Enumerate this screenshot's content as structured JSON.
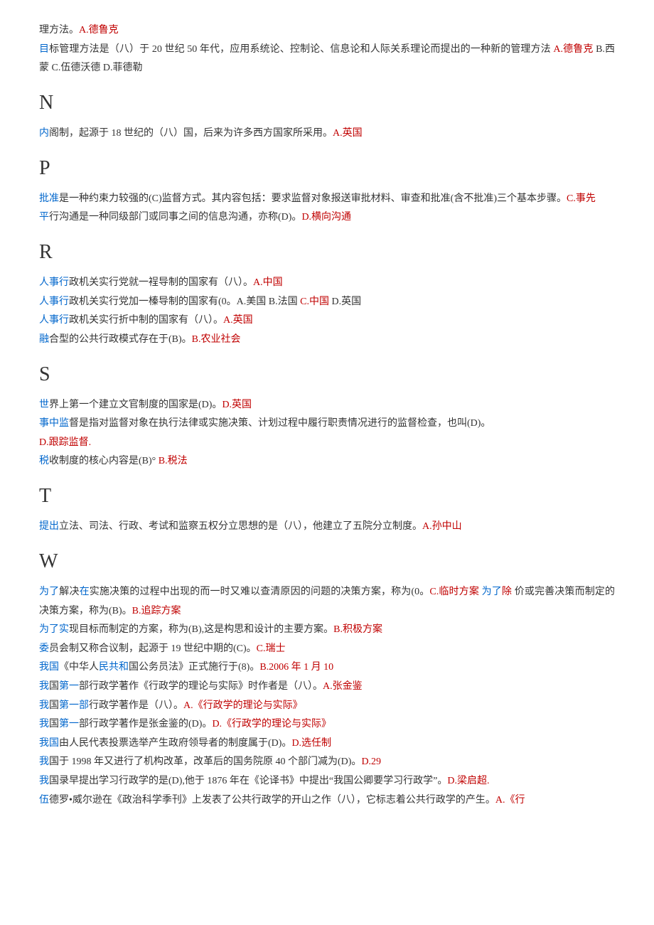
{
  "colors": {
    "blue": "#0066cc",
    "red": "#c00000",
    "black": "#333333",
    "background": "#ffffff"
  },
  "typography": {
    "body_font": "SimSun",
    "body_size_pt": 10.5,
    "letter_font": "Times New Roman",
    "letter_size_pt": 21,
    "line_height": 1.9
  },
  "lines": [
    {
      "type": "text",
      "segments": [
        [
          "black",
          "理方法。"
        ],
        [
          "red",
          "A.德鲁克"
        ]
      ]
    },
    {
      "type": "text",
      "segments": [
        [
          "blue",
          "目"
        ],
        [
          "black",
          "标管理方法是（八）于 20 世纪 50 年代，应用系统论、控制论、信息论和人际关系理论而提出的一种新的管理方法 "
        ],
        [
          "red",
          "A.德鲁克 "
        ],
        [
          "black",
          "B.西蒙 C.伍德沃德 D.菲德勒"
        ]
      ]
    },
    {
      "type": "letter",
      "text": "N"
    },
    {
      "type": "text",
      "segments": [
        [
          "blue",
          "内"
        ],
        [
          "black",
          "阁制，起源于 18 世纪的（八）国，后来为许多西方国家所采用。"
        ],
        [
          "red",
          "A.英国"
        ]
      ]
    },
    {
      "type": "letter",
      "text": "P"
    },
    {
      "type": "text",
      "segments": [
        [
          "blue",
          "批准"
        ],
        [
          "black",
          "是一种约束力较强的(C)监督方式。其内容包括：要求监督对象报送审批材料、审查和批准(含不批准)三个基本步骤。"
        ],
        [
          "red",
          "C.事先"
        ]
      ]
    },
    {
      "type": "text",
      "segments": [
        [
          "blue",
          "平"
        ],
        [
          "black",
          "行沟通是一种同级部门或同事之间的信息沟通，亦称(D)。"
        ],
        [
          "red",
          "D.横向沟通"
        ]
      ]
    },
    {
      "type": "letter",
      "text": "R"
    },
    {
      "type": "text",
      "segments": [
        [
          "blue",
          "人事行"
        ],
        [
          "black",
          "政机关实行党就一裎导制的国家有（八）。"
        ],
        [
          "red",
          "A.中国"
        ]
      ]
    },
    {
      "type": "text",
      "segments": [
        [
          "blue",
          "人事行"
        ],
        [
          "black",
          "政机关实行党"
        ],
        [
          "black",
          "加一榛"
        ],
        [
          "black",
          "导制的国家有(0。A.美国 B.法国 "
        ],
        [
          "red",
          "C.中国 "
        ],
        [
          "black",
          "D.英国"
        ]
      ]
    },
    {
      "type": "text",
      "segments": [
        [
          "blue",
          "人事行"
        ],
        [
          "black",
          "政机关实行折中制的国家有（八）。"
        ],
        [
          "red",
          "A.英国"
        ]
      ]
    },
    {
      "type": "text",
      "segments": [
        [
          "blue",
          "融"
        ],
        [
          "black",
          "合型的公共行政模式存在于(B)。"
        ],
        [
          "red",
          "B.农业社会"
        ]
      ]
    },
    {
      "type": "letter",
      "text": "S"
    },
    {
      "type": "text",
      "segments": [
        [
          "blue",
          "世"
        ],
        [
          "black",
          "界上第一个建立文官制度的国家是(D)。"
        ],
        [
          "red",
          "D.英国"
        ]
      ]
    },
    {
      "type": "text",
      "segments": [
        [
          "blue",
          "事中监"
        ],
        [
          "black",
          "督是指对监督对象在执行法律或实施决策、计划过程中履行职责情况进行的监督检查，也叫(D)。"
        ]
      ]
    },
    {
      "type": "text",
      "segments": [
        [
          "red",
          "D.跟踪监督."
        ]
      ]
    },
    {
      "type": "text",
      "segments": [
        [
          "blue",
          "税"
        ],
        [
          "black",
          "收制度的核心内容是(B)° "
        ],
        [
          "red",
          "B.税法"
        ]
      ]
    },
    {
      "type": "letter",
      "text": "T"
    },
    {
      "type": "text",
      "segments": [
        [
          "blue",
          "提出"
        ],
        [
          "black",
          "立法、司法、行政、考试和监察五权分立思想的是（八），他建立了五院分立制度。"
        ],
        [
          "red",
          "A.孙中山"
        ]
      ]
    },
    {
      "type": "letter",
      "text": "W"
    },
    {
      "type": "text",
      "segments": [
        [
          "blue",
          "为了"
        ],
        [
          "black",
          "解决"
        ],
        [
          "blue",
          "在"
        ],
        [
          "black",
          "实施决策的过程中出现的而一时又难以查清原因的问题的决策方案，称为(0。"
        ],
        [
          "red",
          "C.临时方案 "
        ],
        [
          "blue",
          "为了"
        ],
        [
          "red",
          "除 "
        ],
        [
          "black",
          "价或完善决策而制定的决策方案，称为(B)。"
        ],
        [
          "red",
          "B.追踪方案"
        ]
      ]
    },
    {
      "type": "text",
      "segments": [
        [
          "blue",
          "为了实"
        ],
        [
          "black",
          "现目标而制定的方案，称为(B),这是构思和设计的主要方案。"
        ],
        [
          "red",
          "B.积极方案"
        ]
      ]
    },
    {
      "type": "text",
      "segments": [
        [
          "blue",
          "委"
        ],
        [
          "black",
          "员会制又称合议制，起源于 19 世纪中期的(C)。"
        ],
        [
          "red",
          "C.瑞士"
        ]
      ]
    },
    {
      "type": "text",
      "segments": [
        [
          "blue",
          "我国"
        ],
        [
          "black",
          "《中华人"
        ],
        [
          "blue",
          "民共和"
        ],
        [
          "black",
          "国公务员法》正式施行于(8)。"
        ],
        [
          "red",
          "B.2006 年 1 月 10"
        ]
      ]
    },
    {
      "type": "text",
      "segments": [
        [
          "blue",
          "我"
        ],
        [
          "black",
          "国"
        ],
        [
          "blue",
          "第一"
        ],
        [
          "black",
          "部行政学著作《行政学的理论与实际》时作者是（八）。"
        ],
        [
          "red",
          "A.张金鉴"
        ]
      ]
    },
    {
      "type": "text",
      "segments": [
        [
          "blue",
          "我"
        ],
        [
          "black",
          "国"
        ],
        [
          "blue",
          "第一部"
        ],
        [
          "black",
          "行政学著作是（八）。"
        ],
        [
          "red",
          "A.《行政学的理论与实际》"
        ]
      ]
    },
    {
      "type": "text",
      "segments": [
        [
          "blue",
          "我"
        ],
        [
          "black",
          "国"
        ],
        [
          "blue",
          "第一"
        ],
        [
          "black",
          "部行政学著作是张金鉴的(D)。"
        ],
        [
          "red",
          "D.《行政学的理论与实际》"
        ]
      ]
    },
    {
      "type": "text",
      "segments": [
        [
          "blue",
          "我国"
        ],
        [
          "black",
          "由人民代表投票选举产生政府领导者的制度属于(D)。"
        ],
        [
          "red",
          "D.选任制"
        ]
      ]
    },
    {
      "type": "text",
      "segments": [
        [
          "blue",
          "我"
        ],
        [
          "black",
          "国于 1998 年又进行了机构改革，改革后的国务院原 40 个部门减为(D)。"
        ],
        [
          "red",
          "D.29"
        ]
      ]
    },
    {
      "type": "text",
      "segments": [
        [
          "blue",
          "我"
        ],
        [
          "black",
          "国录早提出学习行政学的是(D),他于 1876 年在《论译书》中提出“我国公卿要学习行政学”。"
        ],
        [
          "red",
          "D.梁启超."
        ]
      ]
    },
    {
      "type": "text",
      "segments": [
        [
          "blue",
          "伍"
        ],
        [
          "black",
          "德罗•威尔逊在《政治科学季刊》上发表了公共行政学的开山之作（八），它标志着公共行政学的产生。"
        ],
        [
          "red",
          "A.《行"
        ]
      ]
    }
  ]
}
